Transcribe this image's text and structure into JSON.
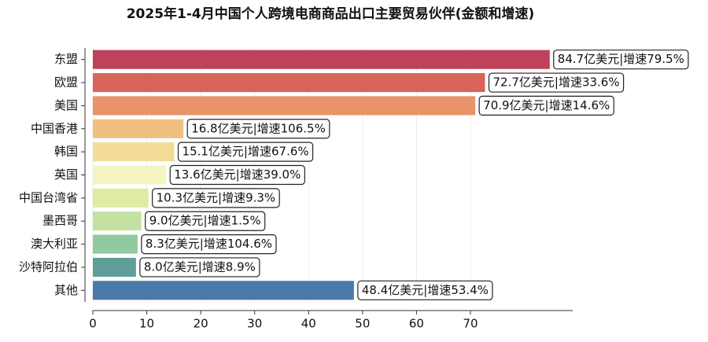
{
  "chart_data": {
    "type": "barh",
    "title": "2025年1-4月中国个人跨境电商商品出口主要贸易伙伴(金额和增速)",
    "categories": [
      "东盟",
      "欧盟",
      "美国",
      "中国香港",
      "韩国",
      "英国",
      "中国台湾省",
      "墨西哥",
      "澳大利亚",
      "沙特阿拉伯",
      "其他"
    ],
    "values": [
      84.7,
      72.7,
      70.9,
      16.8,
      15.1,
      13.6,
      10.3,
      9.0,
      8.3,
      8.0,
      48.4
    ],
    "value_labels": [
      "84.7亿美元|增速79.5%",
      "72.7亿美元|增速33.6%",
      "70.9亿美元|增速14.6%",
      "16.8亿美元|增速106.5%",
      "15.1亿美元|增速67.6%",
      "13.6亿美元|增速39.0%",
      "10.3亿美元|增速9.3%",
      "9.0亿美元|增速1.5%",
      "8.3亿美元|增速104.6%",
      "8.0亿美元|增速8.9%",
      "48.4亿美元|增速53.4%"
    ],
    "colors": [
      "#be4259",
      "#d8645a",
      "#e8936a",
      "#f1bf80",
      "#f3db98",
      "#f6f5c2",
      "#e0eaa2",
      "#c2e1a3",
      "#8fcaa0",
      "#5f9f99",
      "#4a7aa9"
    ],
    "xlim": [
      0,
      89
    ],
    "xticks": [
      0,
      10,
      20,
      30,
      40,
      50,
      60,
      70
    ],
    "grid": true
  }
}
